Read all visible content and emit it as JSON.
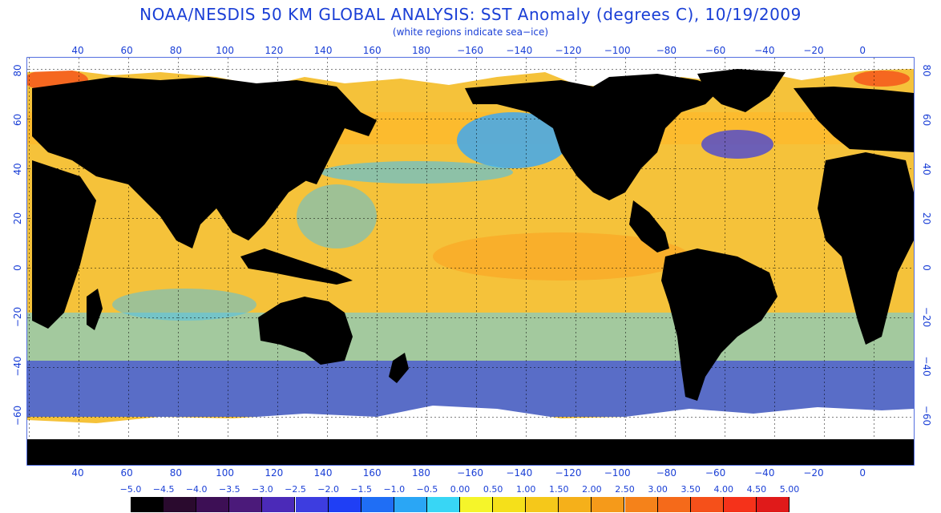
{
  "title": "NOAA/NESDIS 50 KM GLOBAL ANALYSIS: SST Anomaly (degrees C), 10/19/2009",
  "subtitle": "(white regions indicate sea−ice)",
  "top_longitude_labels": [
    "40",
    "60",
    "80",
    "100",
    "120",
    "140",
    "160",
    "180",
    "−160",
    "−140",
    "−120",
    "−100",
    "−80",
    "−60",
    "−40",
    "−20",
    "0"
  ],
  "bottom_longitude_labels": [
    "40",
    "60",
    "80",
    "100",
    "120",
    "140",
    "160",
    "180",
    "−160",
    "−140",
    "−120",
    "−100",
    "−80",
    "−60",
    "−40",
    "−20",
    "0"
  ],
  "left_latitude_labels": [
    "80",
    "60",
    "40",
    "20",
    "0",
    "−20",
    "−40",
    "−60"
  ],
  "right_latitude_labels": [
    "80",
    "60",
    "40",
    "20",
    "0",
    "−20",
    "−40",
    "−60"
  ],
  "colorbar": {
    "labels": [
      "−5.0",
      "−4.5",
      "−4.0",
      "−3.5",
      "−3.0",
      "−2.5",
      "−2.0",
      "−1.5",
      "−1.0",
      "−0.5",
      "0.00",
      "0.50",
      "1.00",
      "1.50",
      "2.00",
      "2.50",
      "3.00",
      "3.50",
      "4.00",
      "4.50",
      "5.00"
    ],
    "colors": [
      "#000000",
      "#2a0a2e",
      "#3d0f55",
      "#4b1a7a",
      "#4b2ab8",
      "#3d3de0",
      "#1f3ff5",
      "#1f6ef5",
      "#2aa6f5",
      "#38d6f5",
      "#f5f52a",
      "#f5e01a",
      "#f5c81a",
      "#f5b01a",
      "#f59a1a",
      "#f5821a",
      "#f56a1a",
      "#f5501a",
      "#f5321a",
      "#e01a1a"
    ]
  },
  "colors": {
    "label_blue": "#1a3fd6",
    "land": "#000000",
    "ice": "#ffffff",
    "warm_ocean": "#f5c23a",
    "cool_ocean": "#3fb8f0",
    "cold_ocean": "#3d3de0"
  }
}
